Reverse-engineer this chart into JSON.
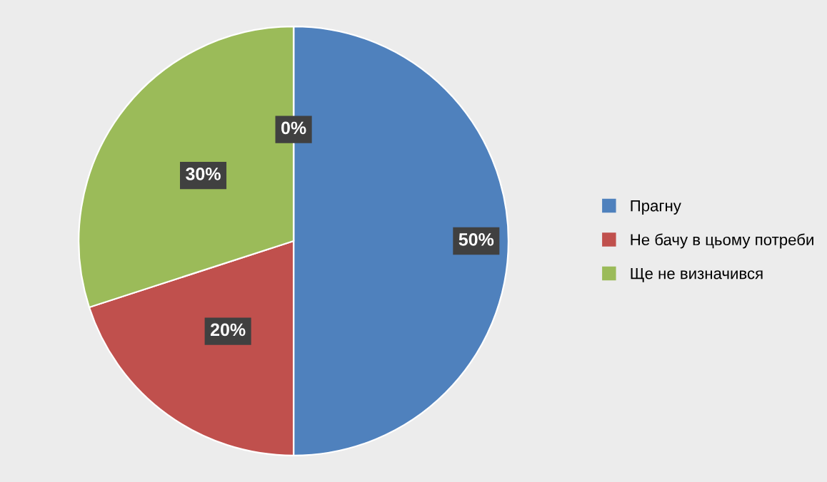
{
  "chart_data": {
    "type": "pie",
    "categories": [
      "Прагну",
      "Не бачу в цьому потреби",
      "Ще не визначився",
      null
    ],
    "values": [
      50,
      20,
      30,
      0
    ],
    "colors": [
      "#4f81bd",
      "#c0504d",
      "#9bbb59",
      "#8064a2"
    ],
    "value_labels": [
      "50%",
      "20%",
      "30%",
      "0%"
    ],
    "legend": "right"
  }
}
